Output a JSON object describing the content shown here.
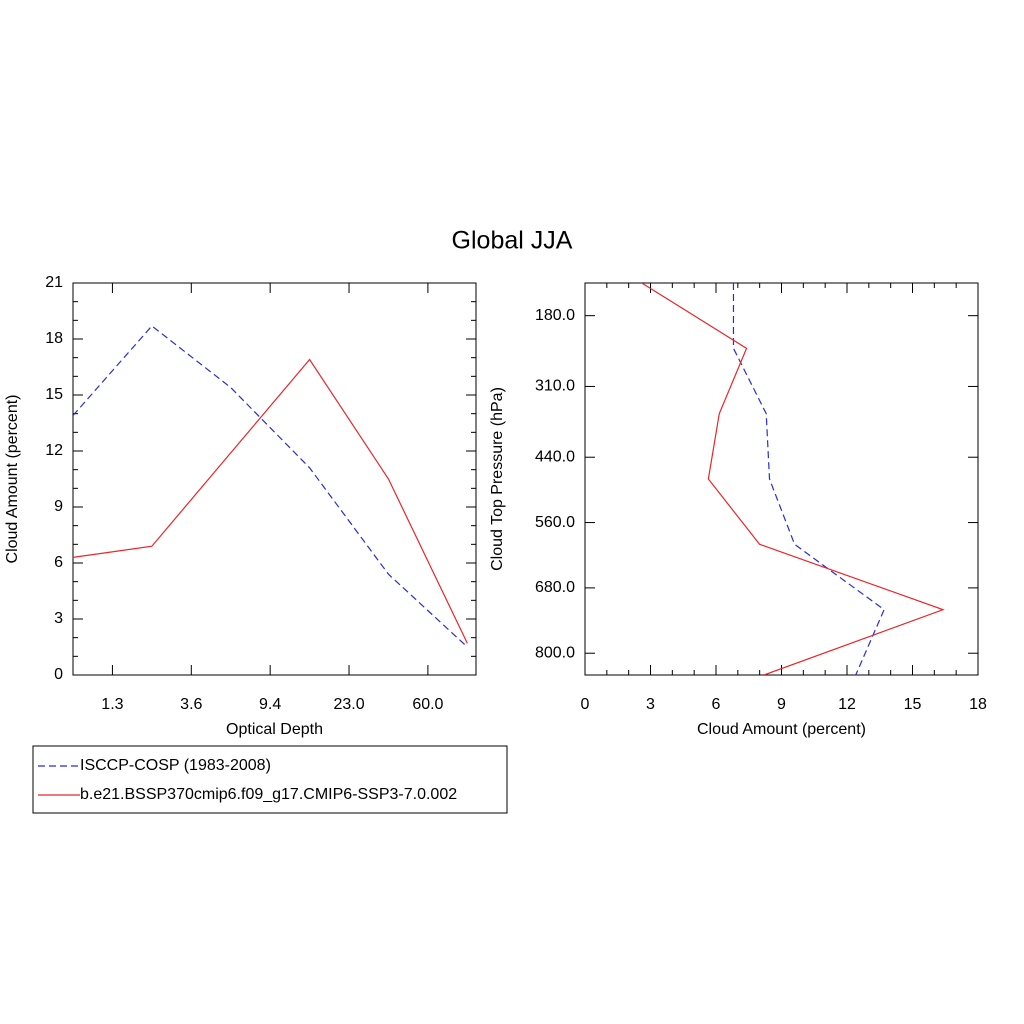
{
  "title": "Global JJA",
  "chart_data": [
    {
      "type": "line",
      "xlabel": "Optical Depth",
      "ylabel": "Cloud Amount (percent)",
      "x": [
        0,
        1,
        2,
        3,
        4,
        5
      ],
      "xlim": [
        0,
        5.11
      ],
      "xticks": [
        {
          "value": 0.5,
          "label": "1.3"
        },
        {
          "value": 1.5,
          "label": "3.6"
        },
        {
          "value": 2.5,
          "label": "9.4"
        },
        {
          "value": 3.5,
          "label": "23.0"
        },
        {
          "value": 4.5,
          "label": "60.0"
        }
      ],
      "ylim": [
        0,
        21
      ],
      "yticks": [
        0,
        3,
        6,
        9,
        12,
        15,
        18,
        21
      ],
      "series": [
        {
          "name": "ISCCP-COSP (1983-2008)",
          "color": "#2b2bd6",
          "dash": true,
          "values": [
            13.9,
            18.7,
            15.4,
            11.1,
            5.4,
            1.5
          ]
        },
        {
          "name": "b.e21.BSSP370cmip6.f09_g17.CMIP6-SSP3-7.0.002",
          "color": "#e8262a",
          "dash": false,
          "values": [
            6.3,
            6.9,
            11.9,
            16.9,
            10.5,
            1.7
          ]
        }
      ]
    },
    {
      "type": "line",
      "orientation": "horizontal",
      "xlabel": "Cloud Amount (percent)",
      "ylabel": "Cloud Top Pressure (hPa)",
      "y": [
        120,
        240,
        360,
        480,
        600,
        720,
        840
      ],
      "ylim": [
        120,
        840
      ],
      "yreverse": true,
      "yticks": [
        {
          "value": 180,
          "label": "180.0"
        },
        {
          "value": 310,
          "label": "310.0"
        },
        {
          "value": 440,
          "label": "440.0"
        },
        {
          "value": 560,
          "label": "560.0"
        },
        {
          "value": 680,
          "label": "680.0"
        },
        {
          "value": 800,
          "label": "800.0"
        }
      ],
      "xlim": [
        0,
        18
      ],
      "xticks": [
        0,
        3,
        6,
        9,
        12,
        15,
        18
      ],
      "series": [
        {
          "color": "#2b2bd6",
          "dash": true,
          "values": [
            6.8,
            6.8,
            8.3,
            8.45,
            9.6,
            13.7,
            12.4
          ]
        },
        {
          "color": "#e8262a",
          "dash": false,
          "values": [
            2.6,
            7.4,
            6.15,
            5.65,
            8.0,
            16.4,
            8.2
          ]
        }
      ]
    }
  ]
}
